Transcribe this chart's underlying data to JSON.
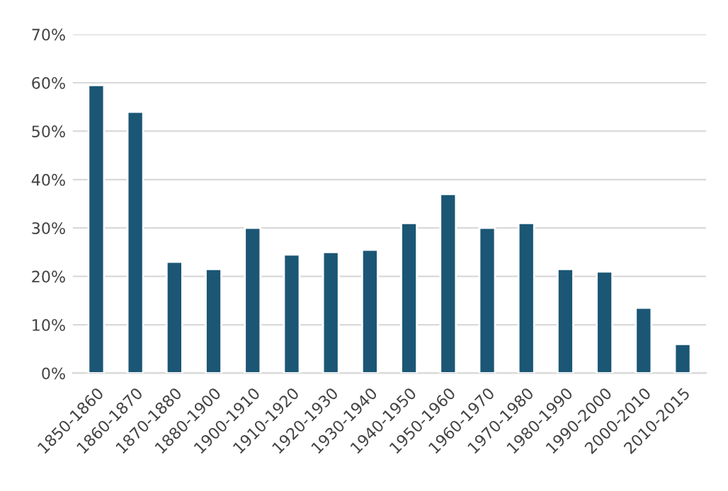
{
  "chart_data": {
    "type": "bar",
    "categories": [
      "1850-1860",
      "1860-1870",
      "1870-1880",
      "1880-1900",
      "1900-1910",
      "1910-1920",
      "1920-1930",
      "1930-1940",
      "1940-1950",
      "1950-1960",
      "1960-1970",
      "1970-1980",
      "1980-1990",
      "1990-2000",
      "2000-2010",
      "2010-2015"
    ],
    "values": [
      59.5,
      54,
      23,
      21.5,
      30,
      24.5,
      25,
      25.5,
      31,
      37,
      30,
      31,
      21.5,
      21,
      13.5,
      6
    ],
    "color": "#1b5675",
    "ylim": [
      0,
      70
    ],
    "yticks": [
      {
        "value": 0,
        "label": "0%"
      },
      {
        "value": 10,
        "label": "10%"
      },
      {
        "value": 20,
        "label": "20%"
      },
      {
        "value": 30,
        "label": "30%"
      },
      {
        "value": 40,
        "label": "40%"
      },
      {
        "value": 50,
        "label": "50%"
      },
      {
        "value": 60,
        "label": "60%"
      },
      {
        "value": 70,
        "label": "70%"
      }
    ],
    "grid": "y"
  }
}
